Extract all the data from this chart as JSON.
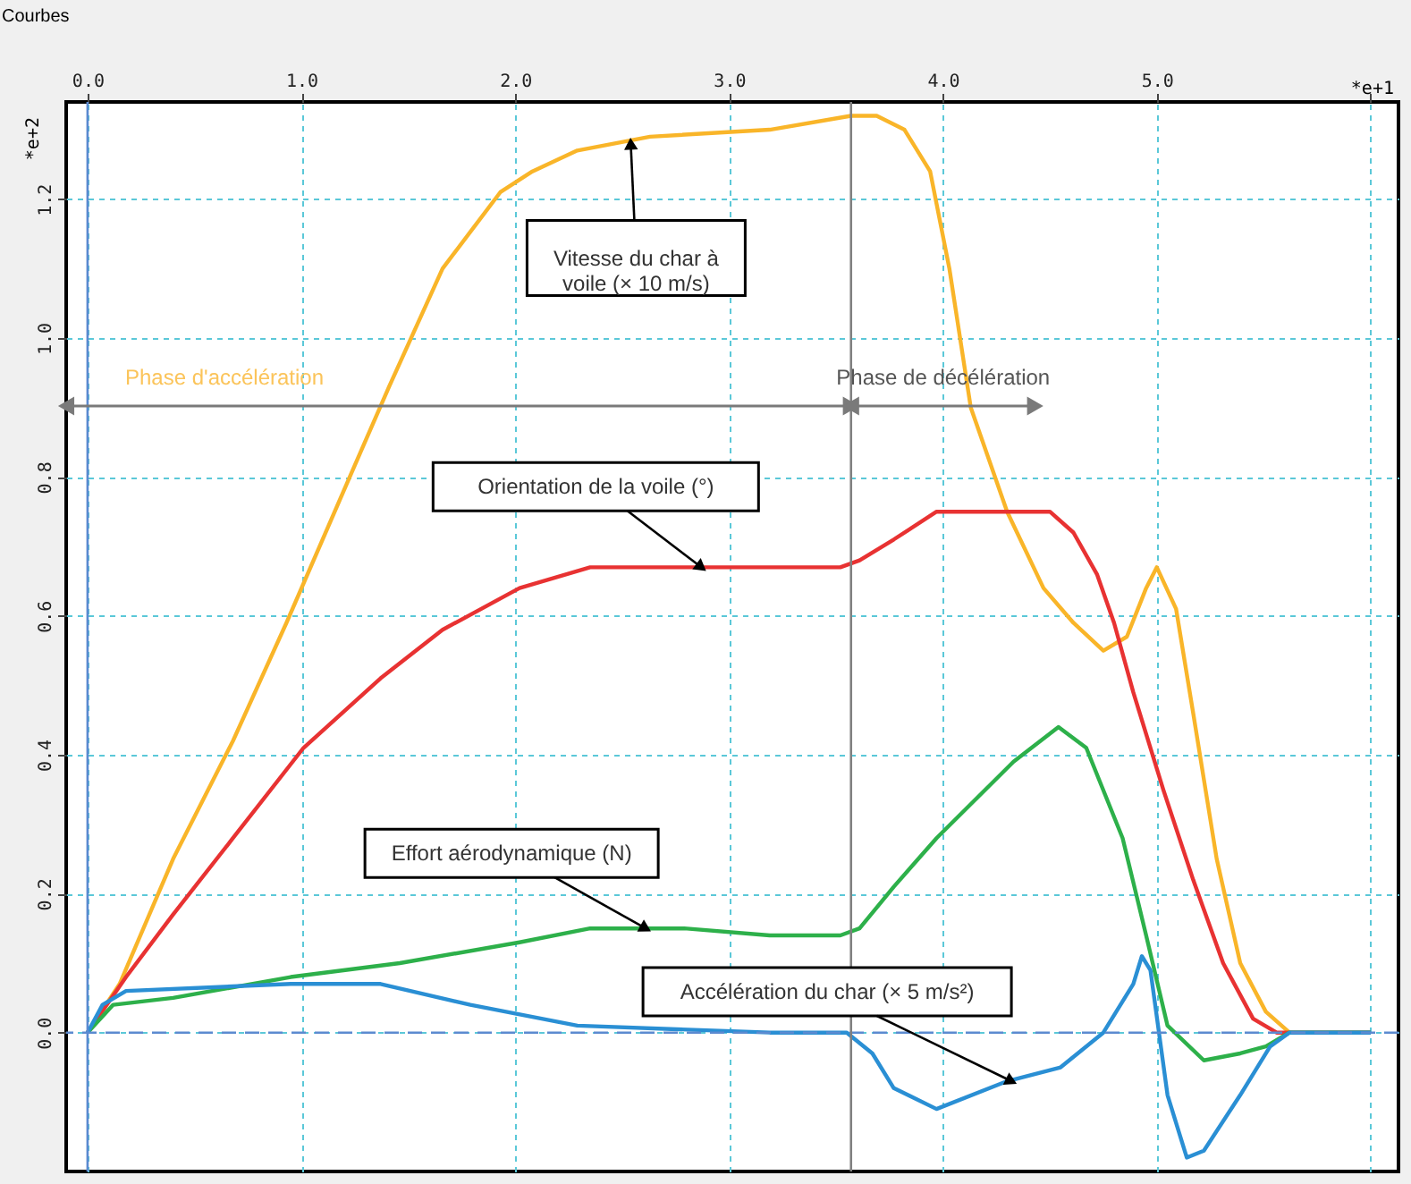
{
  "chart_data": {
    "type": "line",
    "title": "Courbes",
    "xlabel": "*e+1",
    "ylabel": "*e+2",
    "xlim": [
      -0.1,
      6.13
    ],
    "ylim": [
      -0.2,
      1.34
    ],
    "xticks": [
      {
        "value": 0,
        "label": "0.0"
      },
      {
        "value": 1,
        "label": "1.0"
      },
      {
        "value": 2,
        "label": "2.0"
      },
      {
        "value": 3,
        "label": "3.0"
      },
      {
        "value": 4,
        "label": "4.0"
      },
      {
        "value": 5,
        "label": "5.0"
      },
      {
        "value": 6,
        "label": null
      }
    ],
    "yticks": [
      {
        "value": 0,
        "label": "0.0"
      },
      {
        "value": 0.2,
        "label": "0.2"
      },
      {
        "value": 0.4,
        "label": "0.4"
      },
      {
        "value": 0.6,
        "label": "0.6"
      },
      {
        "value": 0.8,
        "label": "0.8"
      },
      {
        "value": 1,
        "label": "1.0"
      },
      {
        "value": 1.2,
        "label": "1.2"
      }
    ],
    "grid": true,
    "legend": false,
    "series": [
      {
        "color": "#f9b529",
        "x": [
          0,
          0.15,
          0.4,
          0.68,
          0.93,
          1.24,
          1.41,
          1.66,
          1.93,
          2.08,
          2.29,
          2.63,
          3.19,
          3.57,
          3.69,
          3.82,
          3.94,
          4.03,
          4.13,
          4.3,
          4.47,
          4.61,
          4.75,
          4.86,
          4.95,
          5.0,
          5.09,
          5.17,
          5.28,
          5.39,
          5.51,
          5.62,
          6.0
        ],
        "values": [
          0,
          0.07,
          0.25,
          0.42,
          0.59,
          0.81,
          0.93,
          1.1,
          1.21,
          1.24,
          1.27,
          1.29,
          1.3,
          1.32,
          1.32,
          1.3,
          1.24,
          1.1,
          0.9,
          0.75,
          0.64,
          0.59,
          0.55,
          0.57,
          0.64,
          0.67,
          0.61,
          0.46,
          0.25,
          0.1,
          0.03,
          0,
          0
        ]
      },
      {
        "color": "#e83232",
        "x": [
          0,
          0.18,
          0.4,
          0.68,
          1.01,
          1.37,
          1.66,
          2.02,
          2.35,
          3.19,
          3.52,
          3.61,
          3.77,
          3.97,
          4.5,
          4.61,
          4.72,
          4.8,
          4.89,
          5.03,
          5.17,
          5.31,
          5.45,
          5.56,
          6.0
        ],
        "values": [
          0,
          0.08,
          0.17,
          0.28,
          0.41,
          0.51,
          0.58,
          0.64,
          0.67,
          0.67,
          0.67,
          0.68,
          0.71,
          0.75,
          0.75,
          0.72,
          0.66,
          0.59,
          0.49,
          0.35,
          0.22,
          0.1,
          0.02,
          0,
          0
        ]
      },
      {
        "color": "#2db04a",
        "x": [
          0,
          0.12,
          0.4,
          0.95,
          1.46,
          2.02,
          2.35,
          2.79,
          3.19,
          3.52,
          3.61,
          3.77,
          3.97,
          4.33,
          4.54,
          4.67,
          4.84,
          4.95,
          5.05,
          5.22,
          5.39,
          5.51,
          5.62,
          6.0
        ],
        "values": [
          0,
          0.04,
          0.05,
          0.08,
          0.1,
          0.13,
          0.15,
          0.15,
          0.14,
          0.14,
          0.15,
          0.21,
          0.28,
          0.39,
          0.44,
          0.41,
          0.28,
          0.14,
          0.01,
          -0.04,
          -0.03,
          -0.02,
          0,
          0
        ]
      },
      {
        "color": "#2a8fd4",
        "x": [
          0,
          0.07,
          0.18,
          0.95,
          1.37,
          1.79,
          2.29,
          3.19,
          3.55,
          3.67,
          3.77,
          3.97,
          4.3,
          4.55,
          4.75,
          4.89,
          4.93,
          4.97,
          5.05,
          5.14,
          5.22,
          5.39,
          5.53,
          5.62,
          6.0
        ],
        "values": [
          0,
          0.04,
          0.06,
          0.07,
          0.07,
          0.04,
          0.01,
          0,
          0,
          -0.03,
          -0.08,
          -0.11,
          -0.07,
          -0.05,
          0,
          0.07,
          0.11,
          0.09,
          -0.09,
          -0.18,
          -0.17,
          -0.09,
          -0.02,
          0,
          0
        ]
      }
    ],
    "ref_lines": [
      {
        "axis": "x",
        "value": 0,
        "color": "#5b8ad0"
      },
      {
        "axis": "y",
        "value": 0,
        "color": "#5b8ad0",
        "line_style": "dashed"
      },
      {
        "axis": "x",
        "value": 3.57,
        "color": "#808080"
      }
    ],
    "annotations": [
      "Phase d'accélération",
      "Phase de décélération",
      {
        "text": "Vitesse du char à\nvoile (× 10 m/s)",
        "x": 2.54,
        "y": 1.28
      },
      {
        "text": "Orientation de la voile (°)",
        "x": 2.87,
        "y": 0.67
      },
      {
        "text": "Effort aérodynamique (N)",
        "x": 2.61,
        "y": 0.15
      },
      {
        "text": "Accélération du char (× 5 m/s²)",
        "x": 4.32,
        "y": -0.07
      }
    ]
  }
}
